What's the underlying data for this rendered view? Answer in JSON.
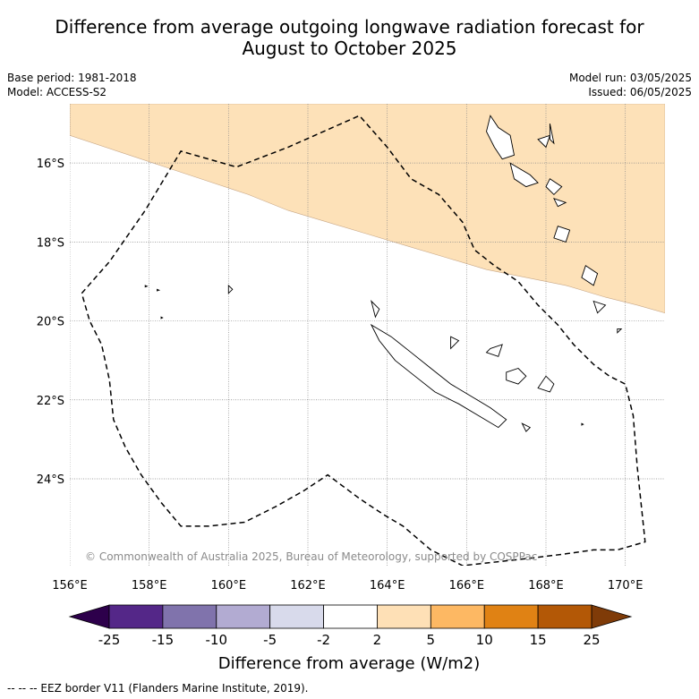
{
  "header": {
    "title_line1": "Difference from average outgoing longwave radiation forecast for",
    "title_line2": "August to October 2025",
    "base_period": "Base period: 1981-2018",
    "model": "Model: ACCESS-S2",
    "model_run": "Model run: 03/05/2025",
    "issued": "Issued: 06/05/2025"
  },
  "colors": {
    "land": "#ffffff",
    "coast": "#000000",
    "grid": "#888888",
    "eez": "#000000",
    "anomaly_2_5": "#fde1b8"
  },
  "chart_data": {
    "type": "heatmap",
    "xlabel": "",
    "ylabel": "",
    "xlim": [
      156,
      171
    ],
    "ylim": [
      -26.2,
      -14.5
    ],
    "x_ticks": [
      156,
      158,
      160,
      162,
      164,
      166,
      168,
      170
    ],
    "x_tick_labels": [
      "156°E",
      "158°E",
      "160°E",
      "162°E",
      "164°E",
      "166°E",
      "168°E",
      "170°E"
    ],
    "y_ticks": [
      -16,
      -18,
      -20,
      -22,
      -24
    ],
    "y_tick_labels": [
      "16°S",
      "18°S",
      "20°S",
      "22°S",
      "24°S"
    ],
    "grid": true,
    "attribution": "© Commonwealth of Australia 2025, Bureau of Meteorology, supported by COSPPac",
    "anomaly_regions": [
      {
        "range": "2 to 5",
        "color": "#fde1b8",
        "boundary_lon_lat": [
          [
            156.0,
            -15.3
          ],
          [
            157.5,
            -15.8
          ],
          [
            159.0,
            -16.3
          ],
          [
            160.5,
            -16.8
          ],
          [
            161.5,
            -17.2
          ],
          [
            162.5,
            -17.5
          ],
          [
            163.5,
            -17.8
          ],
          [
            164.5,
            -18.1
          ],
          [
            165.5,
            -18.4
          ],
          [
            166.5,
            -18.7
          ],
          [
            167.5,
            -18.9
          ],
          [
            168.5,
            -19.1
          ],
          [
            169.5,
            -19.4
          ],
          [
            170.3,
            -19.6
          ],
          [
            171.0,
            -19.8
          ]
        ]
      }
    ],
    "colorbar": {
      "label": "Difference from average (W/m2)",
      "tick_labels": [
        "-25",
        "-15",
        "-10",
        "-5",
        "-2",
        "2",
        "5",
        "10",
        "15",
        "25"
      ],
      "bins": [
        {
          "from": -25,
          "to": -15,
          "color": "#542788"
        },
        {
          "from": -15,
          "to": -10,
          "color": "#8073ac"
        },
        {
          "from": -10,
          "to": -5,
          "color": "#b2abd2"
        },
        {
          "from": -5,
          "to": -2,
          "color": "#d8daeb"
        },
        {
          "from": -2,
          "to": 2,
          "color": "#ffffff"
        },
        {
          "from": 2,
          "to": 5,
          "color": "#fee0b6"
        },
        {
          "from": 5,
          "to": 10,
          "color": "#fdb863"
        },
        {
          "from": 10,
          "to": 15,
          "color": "#e08214"
        },
        {
          "from": 15,
          "to": 25,
          "color": "#b35806"
        }
      ],
      "under_color": "#2d004b",
      "over_color": "#7f3b08"
    },
    "eez_border_lon_lat": [
      [
        156.3,
        -19.3
      ],
      [
        157.0,
        -18.5
      ],
      [
        157.9,
        -17.2
      ],
      [
        158.8,
        -15.7
      ],
      [
        160.2,
        -16.1
      ],
      [
        161.5,
        -15.6
      ],
      [
        163.3,
        -14.8
      ],
      [
        164.0,
        -15.6
      ],
      [
        164.6,
        -16.4
      ],
      [
        165.3,
        -16.8
      ],
      [
        165.9,
        -17.5
      ],
      [
        166.2,
        -18.2
      ],
      [
        166.7,
        -18.6
      ],
      [
        167.3,
        -19.0
      ],
      [
        167.8,
        -19.6
      ],
      [
        168.3,
        -20.1
      ],
      [
        168.7,
        -20.6
      ],
      [
        169.2,
        -21.1
      ],
      [
        169.6,
        -21.4
      ],
      [
        170.0,
        -21.6
      ],
      [
        170.2,
        -22.4
      ],
      [
        170.3,
        -23.7
      ],
      [
        170.5,
        -25.6
      ],
      [
        169.8,
        -25.8
      ],
      [
        169.2,
        -25.8
      ],
      [
        168.5,
        -25.9
      ],
      [
        167.7,
        -26.0
      ],
      [
        166.8,
        -26.1
      ],
      [
        165.9,
        -26.2
      ],
      [
        165.1,
        -25.8
      ],
      [
        164.4,
        -25.2
      ],
      [
        163.9,
        -24.9
      ],
      [
        163.3,
        -24.5
      ],
      [
        162.5,
        -23.9
      ],
      [
        161.9,
        -24.3
      ],
      [
        161.2,
        -24.7
      ],
      [
        160.4,
        -25.1
      ],
      [
        159.5,
        -25.2
      ],
      [
        158.8,
        -25.2
      ],
      [
        158.3,
        -24.6
      ],
      [
        157.8,
        -23.9
      ],
      [
        157.4,
        -23.2
      ],
      [
        157.1,
        -22.5
      ],
      [
        157.0,
        -21.5
      ],
      [
        156.8,
        -20.6
      ],
      [
        156.5,
        -20.0
      ],
      [
        156.3,
        -19.3
      ]
    ],
    "islands_lon_lat": [
      [
        [
          163.6,
          -20.1
        ],
        [
          164.1,
          -20.4
        ],
        [
          164.6,
          -20.8
        ],
        [
          165.1,
          -21.2
        ],
        [
          165.6,
          -21.6
        ],
        [
          166.1,
          -21.9
        ],
        [
          166.6,
          -22.2
        ],
        [
          167.0,
          -22.5
        ],
        [
          166.8,
          -22.7
        ],
        [
          166.3,
          -22.4
        ],
        [
          165.8,
          -22.1
        ],
        [
          165.2,
          -21.8
        ],
        [
          164.7,
          -21.4
        ],
        [
          164.2,
          -21.0
        ],
        [
          163.8,
          -20.5
        ],
        [
          163.6,
          -20.1
        ]
      ],
      [
        [
          163.6,
          -19.5
        ],
        [
          163.8,
          -19.7
        ],
        [
          163.7,
          -19.9
        ],
        [
          163.6,
          -19.5
        ]
      ],
      [
        [
          166.6,
          -20.7
        ],
        [
          166.9,
          -20.6
        ],
        [
          166.8,
          -20.9
        ],
        [
          166.5,
          -20.8
        ],
        [
          166.6,
          -20.7
        ]
      ],
      [
        [
          167.0,
          -21.3
        ],
        [
          167.3,
          -21.2
        ],
        [
          167.5,
          -21.4
        ],
        [
          167.3,
          -21.6
        ],
        [
          167.0,
          -21.5
        ],
        [
          167.0,
          -21.3
        ]
      ],
      [
        [
          168.0,
          -21.4
        ],
        [
          168.2,
          -21.6
        ],
        [
          168.1,
          -21.8
        ],
        [
          167.8,
          -21.7
        ],
        [
          168.0,
          -21.4
        ]
      ],
      [
        [
          167.4,
          -22.6
        ],
        [
          167.6,
          -22.7
        ],
        [
          167.5,
          -22.8
        ],
        [
          167.4,
          -22.6
        ]
      ],
      [
        [
          166.6,
          -14.8
        ],
        [
          166.8,
          -15.1
        ],
        [
          167.1,
          -15.3
        ],
        [
          167.2,
          -15.8
        ],
        [
          166.9,
          -15.9
        ],
        [
          166.7,
          -15.6
        ],
        [
          166.5,
          -15.2
        ],
        [
          166.6,
          -14.8
        ]
      ],
      [
        [
          167.8,
          -15.4
        ],
        [
          168.1,
          -15.3
        ],
        [
          168.0,
          -15.6
        ],
        [
          167.8,
          -15.4
        ]
      ],
      [
        [
          168.1,
          -15.0
        ],
        [
          168.2,
          -15.5
        ],
        [
          168.1,
          -15.4
        ],
        [
          168.1,
          -15.0
        ]
      ],
      [
        [
          167.1,
          -16.0
        ],
        [
          167.6,
          -16.3
        ],
        [
          167.8,
          -16.5
        ],
        [
          167.5,
          -16.6
        ],
        [
          167.2,
          -16.4
        ],
        [
          167.1,
          -16.0
        ]
      ],
      [
        [
          168.1,
          -16.4
        ],
        [
          168.4,
          -16.6
        ],
        [
          168.2,
          -16.8
        ],
        [
          168.0,
          -16.6
        ],
        [
          168.1,
          -16.4
        ]
      ],
      [
        [
          168.2,
          -16.9
        ],
        [
          168.5,
          -17.0
        ],
        [
          168.3,
          -17.1
        ],
        [
          168.2,
          -16.9
        ]
      ],
      [
        [
          168.3,
          -17.6
        ],
        [
          168.6,
          -17.7
        ],
        [
          168.5,
          -18.0
        ],
        [
          168.2,
          -17.9
        ],
        [
          168.3,
          -17.6
        ]
      ],
      [
        [
          169.0,
          -18.6
        ],
        [
          169.3,
          -18.8
        ],
        [
          169.2,
          -19.1
        ],
        [
          168.9,
          -18.9
        ],
        [
          169.0,
          -18.6
        ]
      ],
      [
        [
          169.2,
          -19.5
        ],
        [
          169.5,
          -19.6
        ],
        [
          169.3,
          -19.8
        ],
        [
          169.2,
          -19.5
        ]
      ],
      [
        [
          169.8,
          -20.2
        ],
        [
          169.9,
          -20.2
        ],
        [
          169.8,
          -20.3
        ],
        [
          169.8,
          -20.2
        ]
      ],
      [
        [
          165.6,
          -20.4
        ],
        [
          165.8,
          -20.5
        ],
        [
          165.6,
          -20.7
        ],
        [
          165.6,
          -20.4
        ]
      ],
      [
        [
          160.0,
          -19.1
        ],
        [
          160.1,
          -19.2
        ],
        [
          160.0,
          -19.3
        ],
        [
          160.0,
          -19.1
        ]
      ],
      [
        [
          157.9,
          -19.1
        ],
        [
          157.95,
          -19.12
        ],
        [
          157.9,
          -19.14
        ],
        [
          157.9,
          -19.1
        ]
      ],
      [
        [
          158.2,
          -19.2
        ],
        [
          158.25,
          -19.22
        ],
        [
          158.2,
          -19.24
        ],
        [
          158.2,
          -19.2
        ]
      ],
      [
        [
          158.3,
          -19.9
        ],
        [
          158.34,
          -19.92
        ],
        [
          158.3,
          -19.94
        ],
        [
          158.3,
          -19.9
        ]
      ],
      [
        [
          168.9,
          -22.6
        ],
        [
          168.94,
          -22.62
        ],
        [
          168.9,
          -22.64
        ],
        [
          168.9,
          -22.6
        ]
      ]
    ]
  },
  "legend_note": "--  --  -- EEZ border V11 (Flanders Marine Institute, 2019)."
}
